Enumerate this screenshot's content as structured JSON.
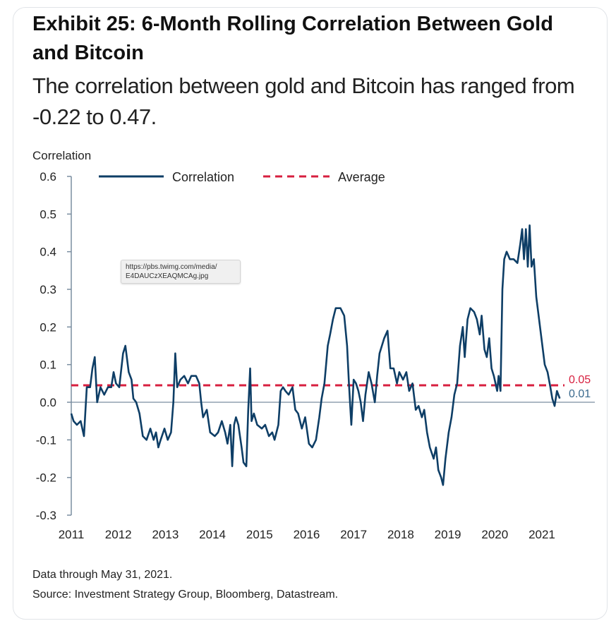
{
  "header": {
    "title": "Exhibit 25: 6-Month Rolling Correlation Between Gold and Bitcoin",
    "subtitle": "The correlation between gold and Bitcoin has ranged from -0.22 to 0.47."
  },
  "footer": {
    "note": "Data through May 31, 2021.",
    "source": "Source: Investment Strategy Group, Bloomberg, Datastream."
  },
  "tooltip": {
    "line1": "https://pbs.twimg.com/media/",
    "line2": "E4DAUCzXEAQMCAg.jpg"
  },
  "chart_data": {
    "type": "line",
    "ylabel": "Correlation",
    "ylim": [
      -0.3,
      0.6
    ],
    "yticks": [
      {
        "v": 0.6,
        "label": "0.6"
      },
      {
        "v": 0.5,
        "label": "0.5"
      },
      {
        "v": 0.4,
        "label": "0.4"
      },
      {
        "v": 0.3,
        "label": "0.3"
      },
      {
        "v": 0.2,
        "label": "0.2"
      },
      {
        "v": 0.1,
        "label": "0.1"
      },
      {
        "v": 0.0,
        "label": "0.0"
      },
      {
        "v": -0.1,
        "label": "-0.1"
      },
      {
        "v": -0.2,
        "label": "-0.2"
      },
      {
        "v": -0.3,
        "label": "-0.3"
      }
    ],
    "xlim": [
      2011.0,
      2021.6
    ],
    "xticks": [
      {
        "v": 2011,
        "label": "2011"
      },
      {
        "v": 2012,
        "label": "2012"
      },
      {
        "v": 2013,
        "label": "2013"
      },
      {
        "v": 2014,
        "label": "2014"
      },
      {
        "v": 2015,
        "label": "2015"
      },
      {
        "v": 2016,
        "label": "2016"
      },
      {
        "v": 2017,
        "label": "2017"
      },
      {
        "v": 2018,
        "label": "2018"
      },
      {
        "v": 2019,
        "label": "2019"
      },
      {
        "v": 2020,
        "label": "2020"
      },
      {
        "v": 2021,
        "label": "2021"
      }
    ],
    "legend_position": "top",
    "series": [
      {
        "name": "Correlation",
        "color": "#0e3e66",
        "style": "solid",
        "end_label": "0.01",
        "points": [
          [
            2011.0,
            -0.03
          ],
          [
            2011.05,
            -0.05
          ],
          [
            2011.12,
            -0.06
          ],
          [
            2011.2,
            -0.05
          ],
          [
            2011.27,
            -0.09
          ],
          [
            2011.33,
            0.04
          ],
          [
            2011.4,
            0.04
          ],
          [
            2011.45,
            0.09
          ],
          [
            2011.5,
            0.12
          ],
          [
            2011.55,
            0.0
          ],
          [
            2011.62,
            0.04
          ],
          [
            2011.7,
            0.02
          ],
          [
            2011.78,
            0.04
          ],
          [
            2011.85,
            0.04
          ],
          [
            2011.9,
            0.08
          ],
          [
            2011.95,
            0.05
          ],
          [
            2012.02,
            0.04
          ],
          [
            2012.1,
            0.13
          ],
          [
            2012.15,
            0.15
          ],
          [
            2012.22,
            0.08
          ],
          [
            2012.28,
            0.06
          ],
          [
            2012.32,
            0.01
          ],
          [
            2012.38,
            0.0
          ],
          [
            2012.45,
            -0.03
          ],
          [
            2012.52,
            -0.09
          ],
          [
            2012.6,
            -0.1
          ],
          [
            2012.68,
            -0.07
          ],
          [
            2012.75,
            -0.1
          ],
          [
            2012.8,
            -0.08
          ],
          [
            2012.85,
            -0.12
          ],
          [
            2012.9,
            -0.1
          ],
          [
            2012.98,
            -0.07
          ],
          [
            2013.05,
            -0.1
          ],
          [
            2013.12,
            -0.08
          ],
          [
            2013.17,
            0.0
          ],
          [
            2013.21,
            0.13
          ],
          [
            2013.25,
            0.04
          ],
          [
            2013.32,
            0.06
          ],
          [
            2013.4,
            0.07
          ],
          [
            2013.48,
            0.05
          ],
          [
            2013.55,
            0.07
          ],
          [
            2013.65,
            0.07
          ],
          [
            2013.72,
            0.05
          ],
          [
            2013.76,
            0.0
          ],
          [
            2013.8,
            -0.04
          ],
          [
            2013.88,
            -0.02
          ],
          [
            2013.95,
            -0.08
          ],
          [
            2014.05,
            -0.09
          ],
          [
            2014.12,
            -0.08
          ],
          [
            2014.2,
            -0.05
          ],
          [
            2014.27,
            -0.08
          ],
          [
            2014.32,
            -0.11
          ],
          [
            2014.38,
            -0.06
          ],
          [
            2014.42,
            -0.17
          ],
          [
            2014.46,
            -0.06
          ],
          [
            2014.5,
            -0.04
          ],
          [
            2014.55,
            -0.06
          ],
          [
            2014.62,
            -0.12
          ],
          [
            2014.66,
            -0.16
          ],
          [
            2014.72,
            -0.17
          ],
          [
            2014.76,
            -0.02
          ],
          [
            2014.8,
            0.09
          ],
          [
            2014.83,
            -0.05
          ],
          [
            2014.88,
            -0.03
          ],
          [
            2014.95,
            -0.06
          ],
          [
            2015.05,
            -0.07
          ],
          [
            2015.12,
            -0.06
          ],
          [
            2015.2,
            -0.09
          ],
          [
            2015.27,
            -0.08
          ],
          [
            2015.32,
            -0.1
          ],
          [
            2015.4,
            -0.06
          ],
          [
            2015.45,
            0.03
          ],
          [
            2015.5,
            0.04
          ],
          [
            2015.55,
            0.03
          ],
          [
            2015.62,
            0.02
          ],
          [
            2015.7,
            0.04
          ],
          [
            2015.76,
            -0.02
          ],
          [
            2015.82,
            -0.03
          ],
          [
            2015.9,
            -0.07
          ],
          [
            2015.97,
            -0.04
          ],
          [
            2016.05,
            -0.11
          ],
          [
            2016.12,
            -0.12
          ],
          [
            2016.2,
            -0.1
          ],
          [
            2016.27,
            -0.04
          ],
          [
            2016.32,
            0.01
          ],
          [
            2016.38,
            0.05
          ],
          [
            2016.45,
            0.15
          ],
          [
            2016.5,
            0.18
          ],
          [
            2016.56,
            0.22
          ],
          [
            2016.62,
            0.25
          ],
          [
            2016.72,
            0.25
          ],
          [
            2016.8,
            0.23
          ],
          [
            2016.86,
            0.15
          ],
          [
            2016.9,
            0.05
          ],
          [
            2016.95,
            -0.06
          ],
          [
            2017.0,
            0.06
          ],
          [
            2017.05,
            0.05
          ],
          [
            2017.1,
            0.03
          ],
          [
            2017.15,
            0.0
          ],
          [
            2017.2,
            -0.05
          ],
          [
            2017.25,
            0.02
          ],
          [
            2017.32,
            0.08
          ],
          [
            2017.38,
            0.05
          ],
          [
            2017.45,
            0.0
          ],
          [
            2017.5,
            0.07
          ],
          [
            2017.55,
            0.13
          ],
          [
            2017.65,
            0.17
          ],
          [
            2017.72,
            0.19
          ],
          [
            2017.78,
            0.09
          ],
          [
            2017.85,
            0.09
          ],
          [
            2017.92,
            0.05
          ],
          [
            2017.97,
            0.08
          ],
          [
            2018.05,
            0.06
          ],
          [
            2018.12,
            0.08
          ],
          [
            2018.18,
            0.03
          ],
          [
            2018.25,
            0.05
          ],
          [
            2018.32,
            -0.02
          ],
          [
            2018.38,
            -0.01
          ],
          [
            2018.45,
            -0.04
          ],
          [
            2018.5,
            -0.02
          ],
          [
            2018.56,
            -0.08
          ],
          [
            2018.62,
            -0.12
          ],
          [
            2018.7,
            -0.15
          ],
          [
            2018.75,
            -0.12
          ],
          [
            2018.8,
            -0.18
          ],
          [
            2018.86,
            -0.2
          ],
          [
            2018.9,
            -0.22
          ],
          [
            2018.95,
            -0.15
          ],
          [
            2019.02,
            -0.08
          ],
          [
            2019.08,
            -0.04
          ],
          [
            2019.14,
            0.02
          ],
          [
            2019.2,
            0.05
          ],
          [
            2019.26,
            0.15
          ],
          [
            2019.32,
            0.2
          ],
          [
            2019.36,
            0.12
          ],
          [
            2019.42,
            0.22
          ],
          [
            2019.48,
            0.25
          ],
          [
            2019.56,
            0.24
          ],
          [
            2019.62,
            0.22
          ],
          [
            2019.68,
            0.18
          ],
          [
            2019.72,
            0.23
          ],
          [
            2019.78,
            0.14
          ],
          [
            2019.83,
            0.12
          ],
          [
            2019.88,
            0.17
          ],
          [
            2019.93,
            0.09
          ],
          [
            2019.98,
            0.07
          ],
          [
            2020.05,
            0.03
          ],
          [
            2020.08,
            0.07
          ],
          [
            2020.12,
            0.03
          ],
          [
            2020.16,
            0.3
          ],
          [
            2020.2,
            0.38
          ],
          [
            2020.25,
            0.4
          ],
          [
            2020.32,
            0.38
          ],
          [
            2020.4,
            0.38
          ],
          [
            2020.48,
            0.37
          ],
          [
            2020.54,
            0.42
          ],
          [
            2020.58,
            0.46
          ],
          [
            2020.62,
            0.38
          ],
          [
            2020.66,
            0.46
          ],
          [
            2020.7,
            0.36
          ],
          [
            2020.74,
            0.47
          ],
          [
            2020.78,
            0.36
          ],
          [
            2020.83,
            0.38
          ],
          [
            2020.88,
            0.28
          ],
          [
            2020.94,
            0.22
          ],
          [
            2021.0,
            0.16
          ],
          [
            2021.06,
            0.1
          ],
          [
            2021.12,
            0.08
          ],
          [
            2021.18,
            0.04
          ],
          [
            2021.22,
            0.01
          ],
          [
            2021.27,
            -0.01
          ],
          [
            2021.32,
            0.03
          ],
          [
            2021.38,
            0.01
          ]
        ]
      },
      {
        "name": "Average",
        "color": "#d71f3f",
        "style": "dashed",
        "end_label": "0.05",
        "value": 0.045
      }
    ]
  }
}
